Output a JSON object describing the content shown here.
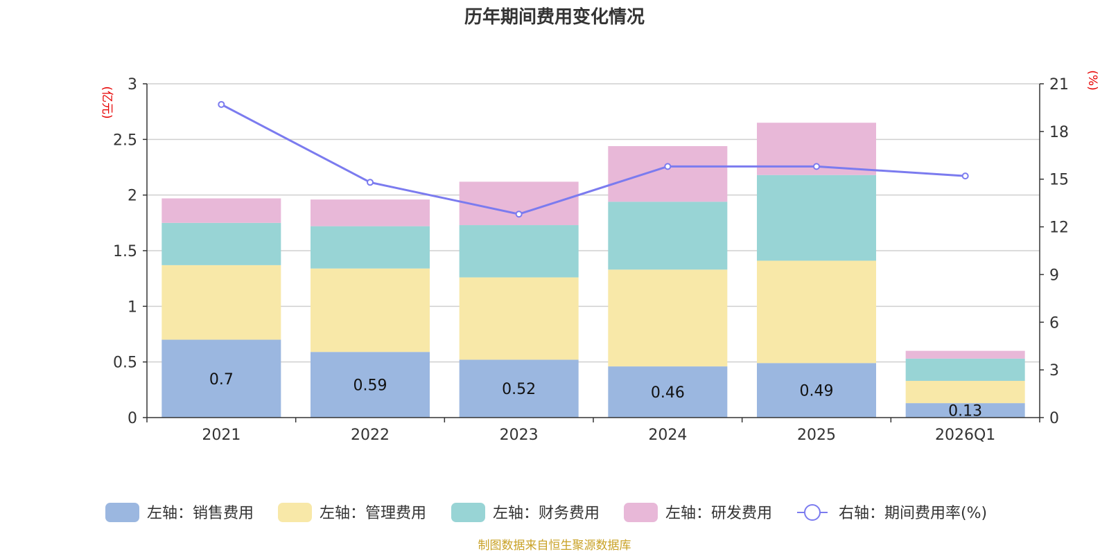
{
  "title": "历年期间费用变化情况",
  "source": "制图数据来自恒生聚源数据库",
  "chart_data": {
    "type": "bar",
    "stacked": true,
    "categories": [
      "2021",
      "2022",
      "2023",
      "2024",
      "2025",
      "2026Q1"
    ],
    "left_axis": {
      "unit": "(亿元)",
      "ylim": [
        0,
        3
      ],
      "ticks": [
        "0",
        "0.5",
        "1",
        "1.5",
        "2",
        "2.5",
        "3"
      ],
      "tick_values": [
        0,
        0.5,
        1,
        1.5,
        2,
        2.5,
        3
      ]
    },
    "right_axis": {
      "unit": "(%)",
      "ylim": [
        0,
        21
      ],
      "ticks": [
        "0",
        "3",
        "6",
        "9",
        "12",
        "15",
        "18",
        "21"
      ],
      "tick_values": [
        0,
        3,
        6,
        9,
        12,
        15,
        18,
        21
      ]
    },
    "series": [
      {
        "name": "左轴：销售费用",
        "axis": "left",
        "type": "bar",
        "color": "#9bb7e0",
        "values": [
          0.7,
          0.59,
          0.52,
          0.46,
          0.49,
          0.13
        ],
        "labels": [
          "0.7",
          "0.59",
          "0.52",
          "0.46",
          "0.49",
          "0.13"
        ]
      },
      {
        "name": "左轴：管理费用",
        "axis": "left",
        "type": "bar",
        "color": "#f8e8a8",
        "values": [
          0.67,
          0.75,
          0.74,
          0.87,
          0.92,
          0.2
        ]
      },
      {
        "name": "左轴：财务费用",
        "axis": "left",
        "type": "bar",
        "color": "#98d4d5",
        "values": [
          0.38,
          0.38,
          0.47,
          0.61,
          0.77,
          0.2
        ]
      },
      {
        "name": "左轴：研发费用",
        "axis": "left",
        "type": "bar",
        "color": "#e8b8d8",
        "values": [
          0.22,
          0.24,
          0.39,
          0.5,
          0.47,
          0.07
        ]
      },
      {
        "name": "右轴：期间费用率(%)",
        "axis": "right",
        "type": "line",
        "color": "#7b7bef",
        "values": [
          19.7,
          14.8,
          12.8,
          15.8,
          15.8,
          15.2
        ]
      }
    ]
  }
}
